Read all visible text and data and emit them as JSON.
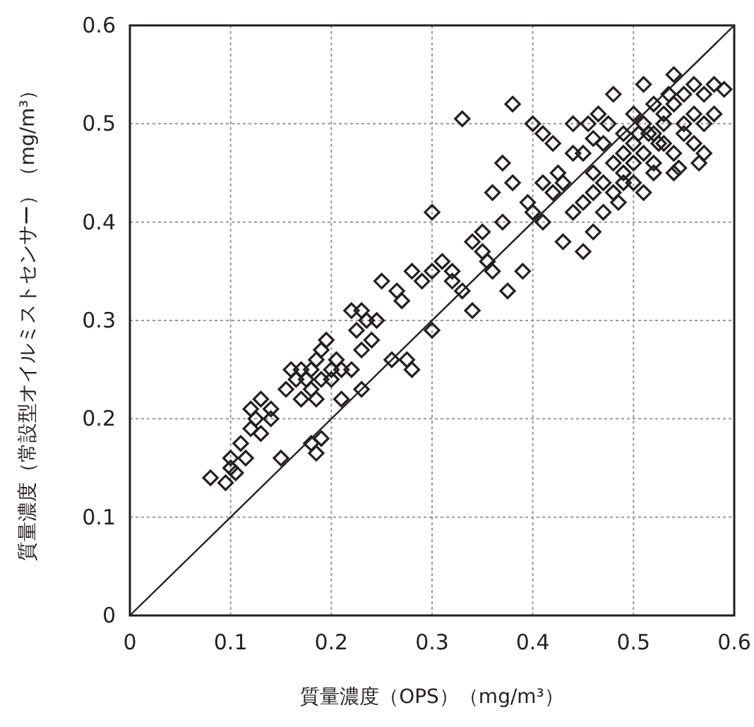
{
  "chart_data": {
    "type": "scatter",
    "xlabel": "質量濃度（OPS）（mg/m³）",
    "ylabel": "質量濃度（常設型オイルミストセンサー）（mg/m³）",
    "xlim": [
      0,
      0.6
    ],
    "ylim": [
      0,
      0.6
    ],
    "xticks": [
      0,
      0.1,
      0.2,
      0.3,
      0.4,
      0.5,
      0.6
    ],
    "yticks": [
      0,
      0.1,
      0.2,
      0.3,
      0.4,
      0.5,
      0.6
    ],
    "grid": true,
    "marker": "diamond",
    "series": [
      {
        "type": "scatter",
        "color": "#231f20",
        "x": [
          0.08,
          0.095,
          0.1,
          0.1,
          0.105,
          0.11,
          0.115,
          0.12,
          0.12,
          0.125,
          0.13,
          0.13,
          0.14,
          0.14,
          0.15,
          0.155,
          0.16,
          0.165,
          0.17,
          0.17,
          0.175,
          0.18,
          0.18,
          0.185,
          0.185,
          0.19,
          0.19,
          0.195,
          0.2,
          0.2,
          0.205,
          0.21,
          0.18,
          0.19,
          0.185,
          0.21,
          0.22,
          0.225,
          0.23,
          0.23,
          0.235,
          0.24,
          0.245,
          0.23,
          0.22,
          0.25,
          0.26,
          0.265,
          0.27,
          0.275,
          0.28,
          0.28,
          0.29,
          0.3,
          0.3,
          0.3,
          0.31,
          0.32,
          0.32,
          0.33,
          0.33,
          0.34,
          0.34,
          0.35,
          0.35,
          0.355,
          0.36,
          0.36,
          0.37,
          0.37,
          0.375,
          0.38,
          0.38,
          0.39,
          0.4,
          0.4,
          0.41,
          0.41,
          0.42,
          0.42,
          0.43,
          0.43,
          0.44,
          0.44,
          0.45,
          0.45,
          0.45,
          0.46,
          0.46,
          0.46,
          0.47,
          0.47,
          0.47,
          0.48,
          0.48,
          0.48,
          0.49,
          0.49,
          0.49,
          0.5,
          0.5,
          0.5,
          0.5,
          0.51,
          0.51,
          0.51,
          0.51,
          0.52,
          0.52,
          0.52,
          0.52,
          0.53,
          0.53,
          0.53,
          0.54,
          0.54,
          0.54,
          0.54,
          0.55,
          0.55,
          0.55,
          0.56,
          0.56,
          0.56,
          0.57,
          0.57,
          0.57,
          0.58,
          0.58,
          0.59,
          0.565,
          0.545,
          0.49,
          0.485,
          0.44,
          0.465,
          0.455,
          0.41,
          0.395,
          0.425,
          0.505,
          0.515,
          0.525,
          0.535,
          0.475,
          0.46
        ],
        "values": [
          0.14,
          0.135,
          0.15,
          0.16,
          0.145,
          0.175,
          0.16,
          0.19,
          0.21,
          0.2,
          0.22,
          0.185,
          0.2,
          0.21,
          0.16,
          0.23,
          0.25,
          0.24,
          0.22,
          0.25,
          0.24,
          0.25,
          0.23,
          0.22,
          0.26,
          0.24,
          0.27,
          0.28,
          0.25,
          0.24,
          0.26,
          0.25,
          0.175,
          0.18,
          0.165,
          0.22,
          0.31,
          0.29,
          0.31,
          0.27,
          0.3,
          0.28,
          0.3,
          0.23,
          0.25,
          0.34,
          0.26,
          0.33,
          0.32,
          0.26,
          0.25,
          0.35,
          0.34,
          0.35,
          0.41,
          0.29,
          0.36,
          0.35,
          0.34,
          0.505,
          0.33,
          0.38,
          0.31,
          0.39,
          0.37,
          0.36,
          0.43,
          0.35,
          0.46,
          0.4,
          0.33,
          0.52,
          0.44,
          0.35,
          0.41,
          0.5,
          0.49,
          0.4,
          0.48,
          0.43,
          0.44,
          0.38,
          0.5,
          0.41,
          0.47,
          0.42,
          0.37,
          0.43,
          0.39,
          0.45,
          0.48,
          0.44,
          0.41,
          0.53,
          0.46,
          0.43,
          0.49,
          0.47,
          0.45,
          0.51,
          0.48,
          0.46,
          0.44,
          0.54,
          0.5,
          0.47,
          0.43,
          0.52,
          0.49,
          0.46,
          0.45,
          0.5,
          0.48,
          0.51,
          0.55,
          0.52,
          0.47,
          0.45,
          0.53,
          0.5,
          0.49,
          0.54,
          0.51,
          0.48,
          0.53,
          0.5,
          0.47,
          0.54,
          0.51,
          0.535,
          0.46,
          0.455,
          0.44,
          0.42,
          0.47,
          0.51,
          0.5,
          0.44,
          0.42,
          0.45,
          0.49,
          0.49,
          0.48,
          0.53,
          0.5,
          0.485
        ]
      },
      {
        "type": "line",
        "color": "#231f20",
        "marker": "none",
        "x": [
          0,
          0.6
        ],
        "values": [
          0,
          0.6
        ]
      }
    ]
  }
}
